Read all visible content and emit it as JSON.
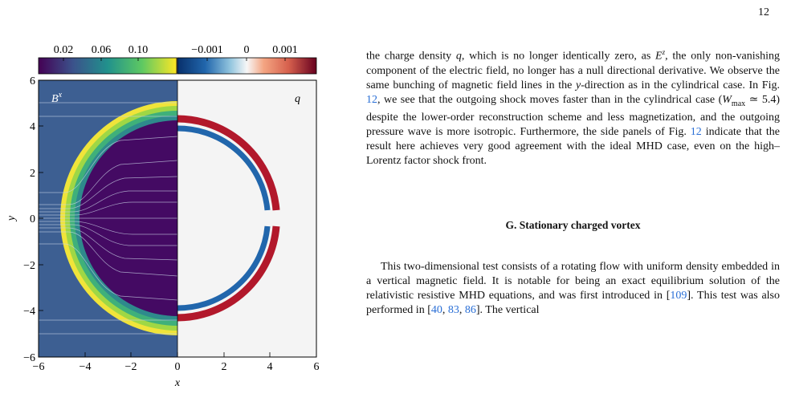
{
  "page_number": "12",
  "figure": {
    "colorbar_left_ticks": [
      "0.02",
      "0.06",
      "0.10"
    ],
    "colorbar_right_ticks": [
      "−0.001",
      "0",
      "0.001"
    ],
    "panel_left_label": "B",
    "panel_left_label_sup": "x",
    "panel_right_label": "q",
    "xlabel": "x",
    "ylabel": "y",
    "x_ticks": [
      "−6",
      "−4",
      "−2",
      "0",
      "2",
      "4",
      "6"
    ],
    "y_ticks": [
      "6",
      "4",
      "2",
      "0",
      "−2",
      "−4",
      "−6"
    ],
    "colors": {
      "low_density": "#440a63",
      "background_field": "#3b5a8e",
      "shell_green": "#6bc845",
      "shell_yellow": "#eee33a",
      "charge_positive": "#b2182b",
      "charge_negative": "#2166ac",
      "charge_zero": "#f4f4f4"
    }
  },
  "text": {
    "para1": {
      "s1a": "the charge density ",
      "q": "q",
      "s1b": ", which is no longer identically zero, as ",
      "E": "E",
      "Esup": "z",
      "s1c": ", the only non-vanishing component of the electric field, no longer has a null directional derivative. We observe the same bunching of magnetic field lines in the ",
      "y": "y",
      "s1d": "-direction as in the cylindrical case. In Fig. ",
      "fig1": "12",
      "s1e": ", we see that the outgoing shock moves faster than in the cylindrical case (",
      "W": "W",
      "Wsub": "max",
      "s1f": " ≃ 5.4) despite the lower-order reconstruction scheme and less magnetization, and the outgoing pressure wave is more isotropic. Furthermore, the side panels of Fig. ",
      "fig2": "12",
      "s1g": " indicate that the result here achieves very good agreement with the ideal MHD case, even on the high–Lorentz factor shock front."
    },
    "heading": "G.   Stationary charged vortex",
    "para2": {
      "s2a": "This two-dimensional test consists of a rotating flow with uniform density embedded in a vertical magnetic field. It is notable for being an exact equilibrium solution of the relativistic resistive MHD equations, and was first introduced in [",
      "c109": "109",
      "s2b": "]. This test was also performed in [",
      "c40": "40",
      "s2c": ", ",
      "c83": "83",
      "s2d": ", ",
      "c86": "86",
      "s2e": "]. The vertical"
    }
  }
}
